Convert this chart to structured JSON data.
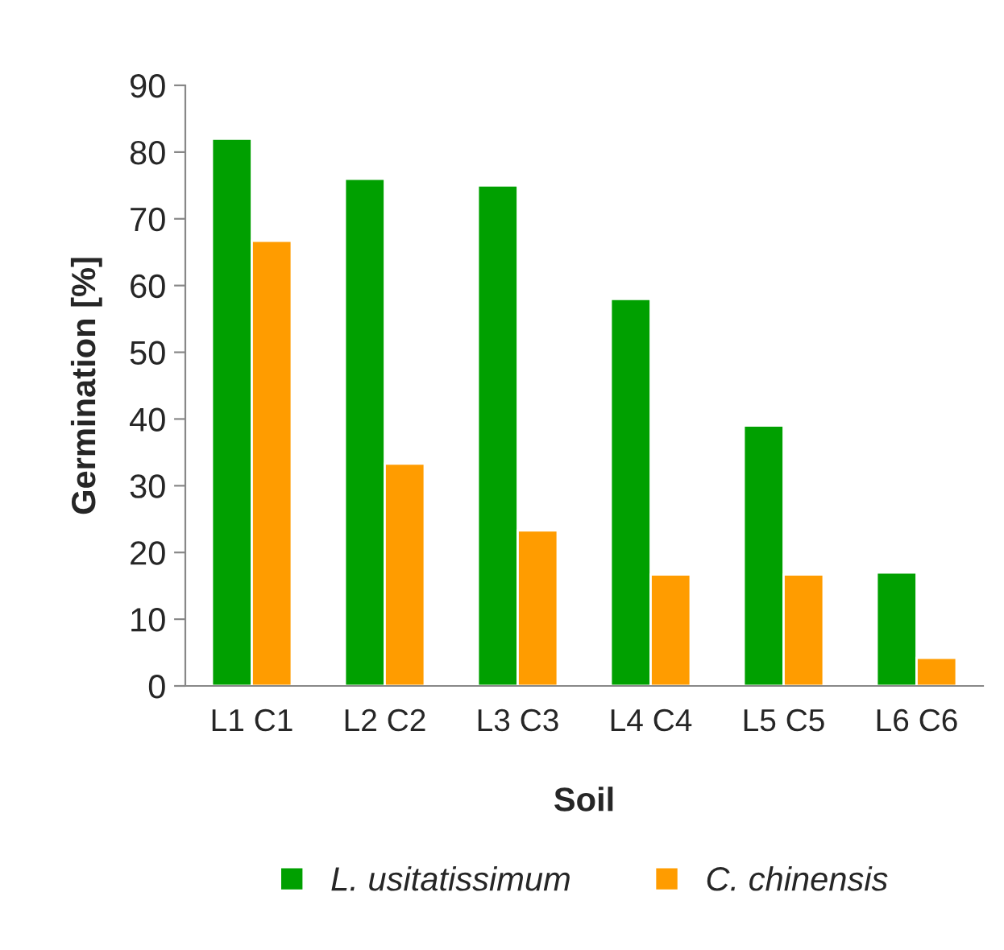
{
  "chart_data": {
    "type": "bar",
    "xlabel": "Soil",
    "ylabel": "Germination [%]",
    "categories": [
      "L1 C1",
      "L2 C2",
      "L3 C3",
      "L4 C4",
      "L5 C5",
      "L6 C6"
    ],
    "series": [
      {
        "name": "L. usitatissimum",
        "color": "#00a000",
        "values": [
          82,
          76,
          75,
          58,
          39,
          17
        ]
      },
      {
        "name": "C. chinensis",
        "color": "#ff9c00",
        "values": [
          66.7,
          33.3,
          23.3,
          16.7,
          16.7,
          4.2
        ]
      }
    ],
    "ylim": [
      0,
      90
    ],
    "yticks": [
      0,
      10,
      20,
      30,
      40,
      50,
      60,
      70,
      80,
      90
    ],
    "grid": false,
    "legend": "bottom"
  }
}
